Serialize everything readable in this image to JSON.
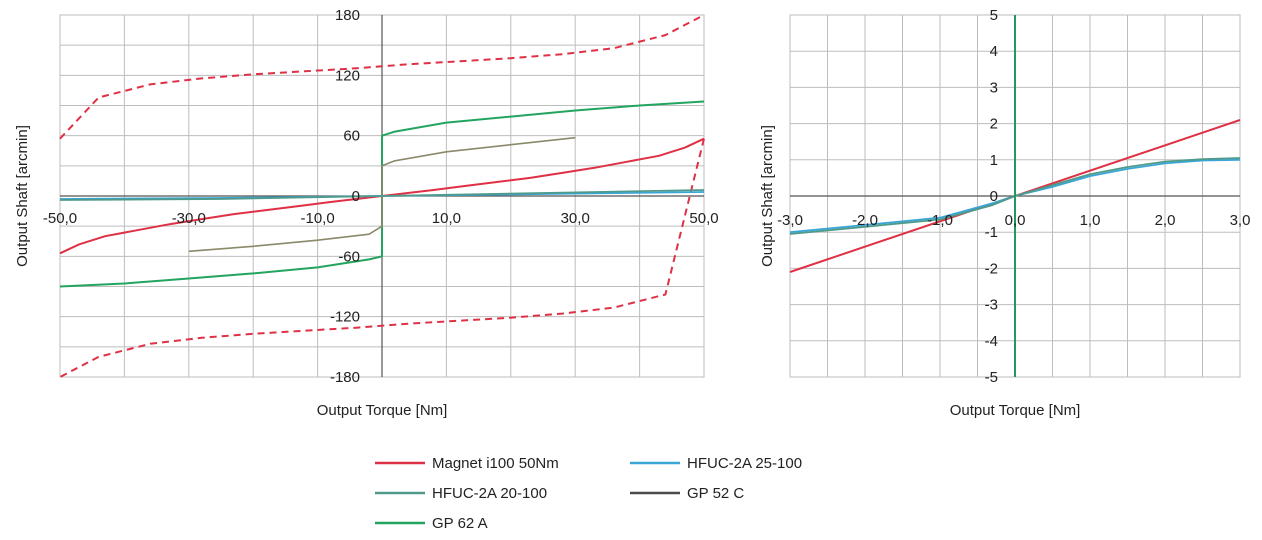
{
  "colors": {
    "magnet": "#e03045",
    "hfuc25": "#3aa6d6",
    "hfuc20": "#4f9a8a",
    "gp52": "#4a4a4a",
    "gp52_inner": "#8a8a6a",
    "gp62": "#23a45f",
    "grid": "#bdbdbd",
    "axis": "#555555",
    "vline_right": "#1f9a5a"
  },
  "legend": {
    "items": [
      {
        "key": "magnet",
        "label": "Magnet i100 50Nm"
      },
      {
        "key": "hfuc25",
        "label": "HFUC-2A  25-100"
      },
      {
        "key": "hfuc20",
        "label": "HFUC-2A 20-100"
      },
      {
        "key": "gp52",
        "label": "GP 52 C"
      },
      {
        "key": "gp62",
        "label": "GP 62 A"
      }
    ]
  },
  "chart_data": [
    {
      "type": "line",
      "xlabel": "Output  Torque  [Nm]",
      "ylabel": "Output Shaft [arcmin]",
      "xlim": [
        -50,
        50
      ],
      "ylim": [
        -180,
        180
      ],
      "x_ticks": [
        -50,
        -30,
        -10,
        10,
        30,
        50
      ],
      "x_tick_labels": [
        "-50,0",
        "-30,0",
        "-10,0",
        "10,0",
        "30,0",
        "50,0"
      ],
      "y_ticks": [
        -180,
        -120,
        -60,
        0,
        60,
        120,
        180
      ],
      "y_tick_labels": [
        "-180",
        "-120",
        "-60",
        "0",
        "60",
        "120",
        "180"
      ],
      "grid": true,
      "series": [
        {
          "name": "Magnet i100 50Nm",
          "key": "magnet",
          "x": [
            -50,
            -47,
            -43,
            -38,
            -33,
            -28,
            -23,
            -18,
            -13,
            -8,
            -4,
            0,
            4,
            8,
            13,
            18,
            23,
            28,
            33,
            38,
            43,
            47,
            50
          ],
          "y": [
            -57,
            -48,
            -40,
            -34,
            -28,
            -23,
            -18,
            -14,
            -10,
            -6,
            -3,
            0,
            3,
            6,
            10,
            14,
            18,
            23,
            28,
            34,
            40,
            48,
            57
          ]
        },
        {
          "name": "Magnet i100 50Nm (hysteresis, dashed)",
          "key": "magnet",
          "dashed": true,
          "x": [
            -50,
            -44,
            -36,
            -28,
            -20,
            -12,
            -4,
            0,
            4,
            12,
            20,
            28,
            36,
            44,
            50
          ],
          "y": [
            57,
            98,
            111,
            117,
            121,
            124,
            127,
            129,
            131,
            134,
            137,
            141,
            147,
            160,
            180
          ]
        },
        {
          "name": "Magnet i100 50Nm (hysteresis, dashed)",
          "key": "magnet",
          "dashed": true,
          "x": [
            50,
            44,
            36,
            28,
            20,
            12,
            4,
            0,
            -4,
            -12,
            -20,
            -28,
            -36,
            -44,
            -50
          ],
          "y": [
            57,
            -98,
            -111,
            -117,
            -121,
            -124,
            -127,
            -129,
            -131,
            -134,
            -137,
            -141,
            -147,
            -160,
            -180
          ]
        },
        {
          "name": "GP 62 A",
          "key": "gp62",
          "x": [
            -50,
            -40,
            -30,
            -20,
            -10,
            -2,
            0,
            0,
            2,
            10,
            20,
            30,
            40,
            50
          ],
          "y": [
            -90,
            -87,
            -82,
            -77,
            -71,
            -63,
            -60,
            60,
            64,
            73,
            79,
            85,
            90,
            94
          ]
        },
        {
          "name": "GP 52 C",
          "key": "gp52",
          "x": [
            -30,
            -20,
            -10,
            -2,
            0,
            0,
            2,
            10,
            20,
            30
          ],
          "y": [
            -55,
            -50,
            -44,
            -38,
            -30,
            30,
            35,
            44,
            51,
            58
          ]
        },
        {
          "name": "HFUC-2A  25-100",
          "key": "hfuc25",
          "x": [
            -50,
            -25,
            0,
            25,
            50
          ],
          "y": [
            -3,
            -2,
            0,
            2,
            4
          ]
        },
        {
          "name": "HFUC-2A 20-100",
          "key": "hfuc20",
          "x": [
            -50,
            -25,
            0,
            25,
            50
          ],
          "y": [
            -4,
            -3,
            0,
            3,
            6
          ]
        }
      ]
    },
    {
      "type": "line",
      "xlabel": "Output  Torque  [Nm]",
      "ylabel": "Output  Shaft [arcmin]",
      "xlim": [
        -3,
        3
      ],
      "ylim": [
        -5,
        5
      ],
      "x_ticks": [
        -3,
        -2,
        -1,
        0,
        1,
        2,
        3
      ],
      "x_tick_labels": [
        "-3,0",
        "-2,0",
        "-1,0",
        "0,0",
        "1,0",
        "2,0",
        "3,0"
      ],
      "y_ticks": [
        -5,
        -4,
        -3,
        -2,
        -1,
        0,
        1,
        2,
        3,
        4,
        5
      ],
      "y_tick_labels": [
        "-5",
        "-4",
        "-3",
        "-2",
        "-1",
        "0",
        "1",
        "2",
        "3",
        "4",
        "5"
      ],
      "grid": true,
      "series": [
        {
          "name": "Magnet i100 50Nm",
          "key": "magnet",
          "x": [
            -3,
            0,
            3
          ],
          "y": [
            -2.1,
            0,
            2.1
          ]
        },
        {
          "name": "HFUC-2A  25-100",
          "key": "hfuc25",
          "x": [
            -3,
            -2,
            -1,
            -0.3,
            0,
            0.5,
            1,
            1.5,
            2,
            2.5,
            3
          ],
          "y": [
            -1.0,
            -0.8,
            -0.6,
            -0.2,
            0,
            0.25,
            0.55,
            0.75,
            0.9,
            0.98,
            1.0
          ]
        },
        {
          "name": "HFUC-2A 20-100",
          "key": "hfuc20",
          "x": [
            -3,
            -2,
            -1,
            -0.3,
            0,
            0.5,
            1,
            1.5,
            2,
            2.5,
            3
          ],
          "y": [
            -1.05,
            -0.85,
            -0.65,
            -0.25,
            0,
            0.3,
            0.6,
            0.8,
            0.95,
            1.02,
            1.05
          ]
        },
        {
          "name": "GP 62 A",
          "key": "gp62",
          "x": [
            0,
            0
          ],
          "y": [
            -5,
            5
          ]
        }
      ]
    }
  ]
}
